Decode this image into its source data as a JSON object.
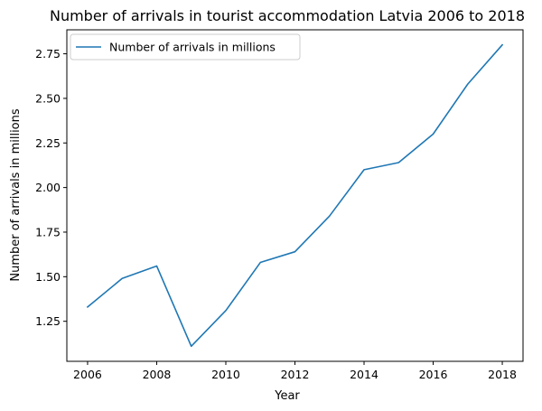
{
  "chart_data": {
    "type": "line",
    "title": "Number of arrivals in tourist accommodation Latvia 2006 to 2018",
    "xlabel": "Year",
    "ylabel": "Number of arrivals in millions",
    "x": [
      2006,
      2007,
      2008,
      2009,
      2010,
      2011,
      2012,
      2013,
      2014,
      2015,
      2016,
      2017,
      2018
    ],
    "series": [
      {
        "name": "Number of arrivals in millions",
        "color": "#1f77b4",
        "values": [
          1.33,
          1.49,
          1.56,
          1.11,
          1.31,
          1.58,
          1.64,
          1.84,
          2.1,
          2.14,
          2.3,
          2.58,
          2.8
        ]
      }
    ],
    "xlim": [
      2005.4,
      2018.6
    ],
    "ylim": [
      1.0255,
      2.8845
    ],
    "xticks": [
      2006,
      2008,
      2010,
      2012,
      2014,
      2016,
      2018
    ],
    "yticks": [
      "1.25",
      "1.50",
      "1.75",
      "2.00",
      "2.25",
      "2.50",
      "2.75"
    ],
    "grid": false,
    "legend_position": "upper-left"
  }
}
